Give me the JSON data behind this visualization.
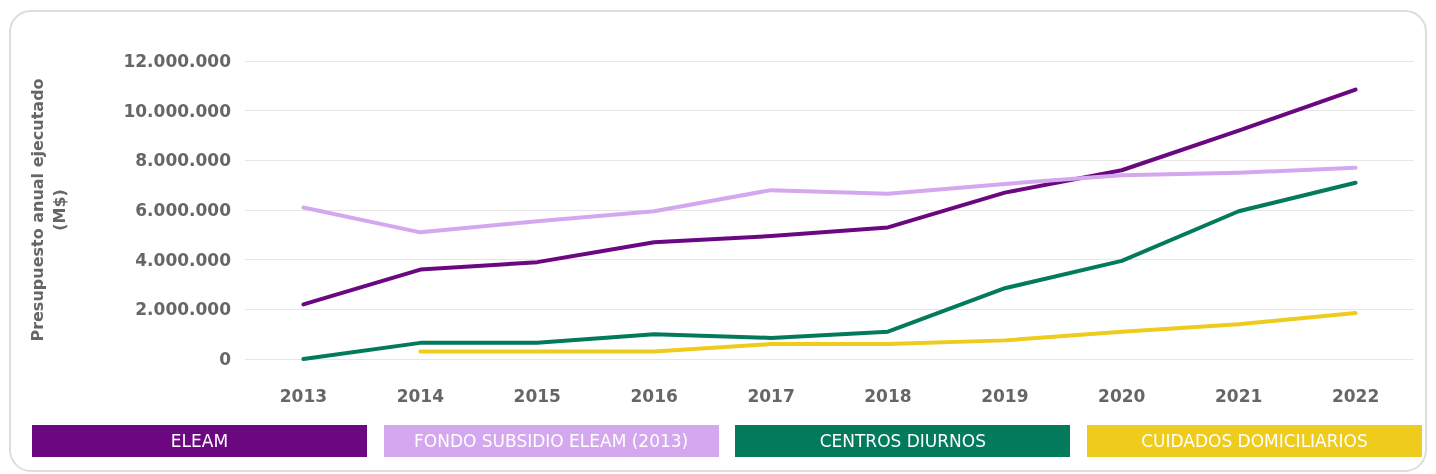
{
  "chart_data": {
    "type": "line",
    "ylabel": "Presupuesto anual ejecutado\n(M$)",
    "categories": [
      "2013",
      "2014",
      "2015",
      "2016",
      "2017",
      "2018",
      "2019",
      "2020",
      "2021",
      "2022"
    ],
    "series": [
      {
        "name": "ELEAM",
        "color": "#6b0780",
        "values": [
          2200000,
          3600000,
          3900000,
          4700000,
          4950000,
          5300000,
          6700000,
          7600000,
          9200000,
          10850000
        ]
      },
      {
        "name": "FONDO SUBSIDIO ELEAM (2013)",
        "color": "#d4a8ee",
        "values": [
          6100000,
          5100000,
          5550000,
          5950000,
          6800000,
          6650000,
          7050000,
          7400000,
          7500000,
          7700000
        ]
      },
      {
        "name": "CENTROS DIURNOS",
        "color": "#037a5c",
        "values": [
          0,
          650000,
          650000,
          1000000,
          850000,
          1100000,
          2850000,
          3950000,
          5950000,
          7100000
        ]
      },
      {
        "name": "CUIDADOS DOMICILIARIOS",
        "color": "#eecb1c",
        "values": [
          null,
          300000,
          300000,
          300000,
          600000,
          600000,
          750000,
          1100000,
          1400000,
          1850000
        ]
      }
    ],
    "ylim": [
      0,
      12000000
    ],
    "yticks": [
      {
        "value": 0,
        "label": "0"
      },
      {
        "value": 2000000,
        "label": "2.000.000"
      },
      {
        "value": 4000000,
        "label": "4.000.000"
      },
      {
        "value": 6000000,
        "label": "6.000.000"
      },
      {
        "value": 8000000,
        "label": "8.000.000"
      },
      {
        "value": 10000000,
        "label": "10.000.000"
      },
      {
        "value": 12000000,
        "label": "12.000.000"
      }
    ],
    "grid": "y",
    "legend": "bottom",
    "marker": "none",
    "line_style": "solid"
  }
}
